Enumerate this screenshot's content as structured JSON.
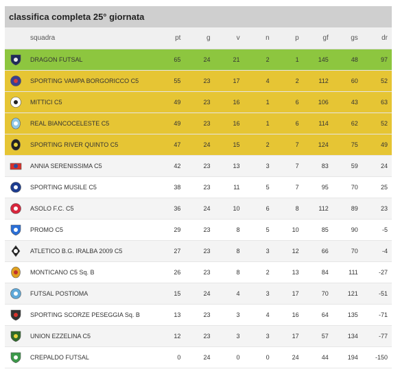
{
  "title": "classifica completa 25° giornata",
  "columns": [
    "squadra",
    "pt",
    "g",
    "v",
    "n",
    "p",
    "gf",
    "gs",
    "dr"
  ],
  "rows": [
    {
      "team": "DRAGON FUTSAL",
      "pt": "65",
      "g": "24",
      "v": "21",
      "n": "2",
      "p": "1",
      "gf": "145",
      "gs": "48",
      "dr": "97",
      "zone": "champ",
      "badge": {
        "icon": "dragon-badge-icon",
        "shape": "shield",
        "c1": "#1f2a5a",
        "c2": "#e8e8e8"
      }
    },
    {
      "team": "SPORTING VAMPA BORGORICCO C5",
      "pt": "55",
      "g": "23",
      "v": "17",
      "n": "4",
      "p": "2",
      "gf": "112",
      "gs": "60",
      "dr": "52",
      "zone": "play",
      "badge": {
        "icon": "vampa-badge-icon",
        "shape": "round",
        "c1": "#3a3f8f",
        "c2": "#d33b3b"
      }
    },
    {
      "team": "MITTICI C5",
      "pt": "49",
      "g": "23",
      "v": "16",
      "n": "1",
      "p": "6",
      "gf": "106",
      "gs": "43",
      "dr": "63",
      "zone": "play",
      "badge": {
        "icon": "mittici-badge-icon",
        "shape": "round",
        "c1": "#ffffff",
        "c2": "#222222"
      }
    },
    {
      "team": "REAL BIANCOCELESTE C5",
      "pt": "49",
      "g": "23",
      "v": "16",
      "n": "1",
      "p": "6",
      "gf": "114",
      "gs": "62",
      "dr": "52",
      "zone": "play",
      "badge": {
        "icon": "biancoceleste-badge-icon",
        "shape": "oval",
        "c1": "#8fc7e6",
        "c2": "#ffffff"
      }
    },
    {
      "team": "SPORTING RIVER QUINTO C5",
      "pt": "47",
      "g": "24",
      "v": "15",
      "n": "2",
      "p": "7",
      "gf": "124",
      "gs": "75",
      "dr": "49",
      "zone": "play",
      "badge": {
        "icon": "river-quinto-badge-icon",
        "shape": "oval",
        "c1": "#222222",
        "c2": "#e6d23a"
      }
    },
    {
      "team": "ANNIA SERENISSIMA C5",
      "pt": "42",
      "g": "23",
      "v": "13",
      "n": "3",
      "p": "7",
      "gf": "83",
      "gs": "59",
      "dr": "24",
      "zone": "none",
      "badge": {
        "icon": "annia-badge-icon",
        "shape": "flag",
        "c1": "#d9322b",
        "c2": "#2a4fa0"
      }
    },
    {
      "team": "SPORTING MUSILE C5",
      "pt": "38",
      "g": "23",
      "v": "11",
      "n": "5",
      "p": "7",
      "gf": "95",
      "gs": "70",
      "dr": "25",
      "zone": "none",
      "badge": {
        "icon": "musile-badge-icon",
        "shape": "round",
        "c1": "#1d3c8f",
        "c2": "#ffffff"
      }
    },
    {
      "team": "ASOLO F.C. C5",
      "pt": "36",
      "g": "24",
      "v": "10",
      "n": "6",
      "p": "8",
      "gf": "112",
      "gs": "89",
      "dr": "23",
      "zone": "none",
      "badge": {
        "icon": "asolo-badge-icon",
        "shape": "round",
        "c1": "#d7263d",
        "c2": "#ffffff"
      }
    },
    {
      "team": "PROMO C5",
      "pt": "29",
      "g": "23",
      "v": "8",
      "n": "5",
      "p": "10",
      "gf": "85",
      "gs": "90",
      "dr": "-5",
      "zone": "none",
      "badge": {
        "icon": "promo-badge-icon",
        "shape": "shield",
        "c1": "#2b6fd6",
        "c2": "#ffffff"
      }
    },
    {
      "team": "ATLETICO B.G. IRALBA 2009 C5",
      "pt": "27",
      "g": "23",
      "v": "8",
      "n": "3",
      "p": "12",
      "gf": "66",
      "gs": "70",
      "dr": "-4",
      "zone": "none",
      "badge": {
        "icon": "iralba-badge-icon",
        "shape": "diamond",
        "c1": "#222222",
        "c2": "#ffffff"
      }
    },
    {
      "team": "MONTICANO C5 Sq. B",
      "pt": "26",
      "g": "23",
      "v": "8",
      "n": "2",
      "p": "13",
      "gf": "84",
      "gs": "111",
      "dr": "-27",
      "zone": "none",
      "badge": {
        "icon": "monticano-badge-icon",
        "shape": "oval",
        "c1": "#e0a020",
        "c2": "#c0302a"
      }
    },
    {
      "team": "FUTSAL POSTIOMA",
      "pt": "15",
      "g": "24",
      "v": "4",
      "n": "3",
      "p": "17",
      "gf": "70",
      "gs": "121",
      "dr": "-51",
      "zone": "none",
      "badge": {
        "icon": "postioma-badge-icon",
        "shape": "round",
        "c1": "#5fa8d8",
        "c2": "#ffffff"
      }
    },
    {
      "team": "SPORTING SCORZE PESEGGIA Sq. B",
      "pt": "13",
      "g": "23",
      "v": "3",
      "n": "4",
      "p": "16",
      "gf": "64",
      "gs": "135",
      "dr": "-71",
      "zone": "none",
      "badge": {
        "icon": "scorze-badge-icon",
        "shape": "shield",
        "c1": "#333333",
        "c2": "#d9322b"
      }
    },
    {
      "team": "UNION EZZELINA C5",
      "pt": "12",
      "g": "23",
      "v": "3",
      "n": "3",
      "p": "17",
      "gf": "57",
      "gs": "134",
      "dr": "-77",
      "zone": "none",
      "badge": {
        "icon": "ezzelina-badge-icon",
        "shape": "shield",
        "c1": "#2f6b2a",
        "c2": "#e6d23a"
      }
    },
    {
      "team": "CREPALDO FUTSAL",
      "pt": "0",
      "g": "24",
      "v": "0",
      "n": "0",
      "p": "24",
      "gf": "44",
      "gs": "194",
      "dr": "-150",
      "zone": "none",
      "badge": {
        "icon": "crepaldo-badge-icon",
        "shape": "shield",
        "c1": "#3c9a4a",
        "c2": "#ffffff"
      }
    }
  ],
  "colors": {
    "champ": "#8dc63f",
    "play": "#e6c534",
    "header": "#cfcfcf"
  }
}
